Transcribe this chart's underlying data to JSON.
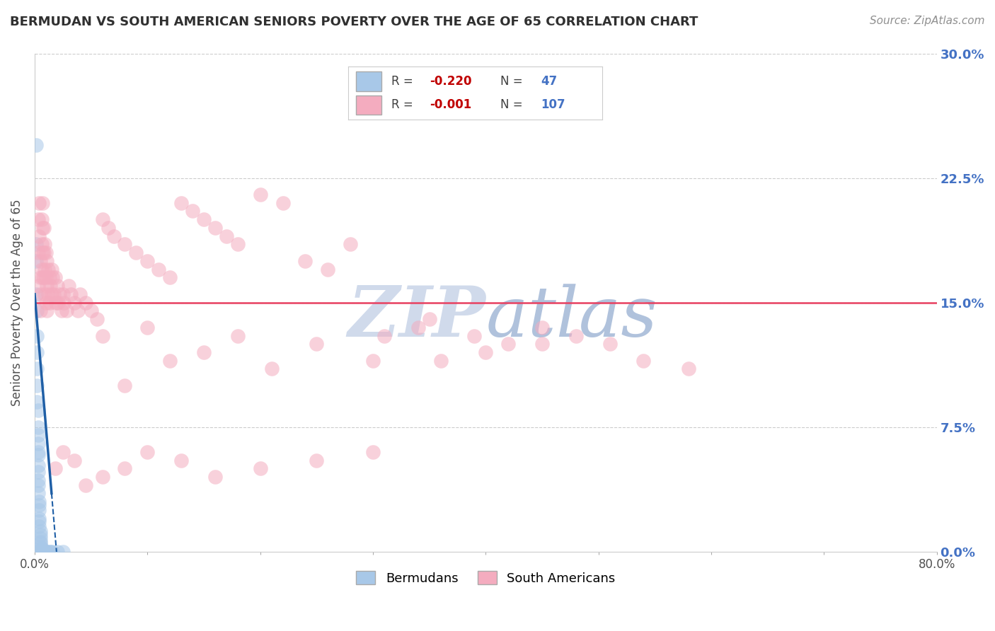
{
  "title": "BERMUDAN VS SOUTH AMERICAN SENIORS POVERTY OVER THE AGE OF 65 CORRELATION CHART",
  "source": "Source: ZipAtlas.com",
  "ylabel": "Seniors Poverty Over the Age of 65",
  "xlim": [
    0,
    0.8
  ],
  "ylim": [
    0,
    0.3
  ],
  "yticks": [
    0.0,
    0.075,
    0.15,
    0.225,
    0.3
  ],
  "ytick_labels": [
    "0.0%",
    "7.5%",
    "15.0%",
    "22.5%",
    "30.0%"
  ],
  "xticks": [
    0.0,
    0.1,
    0.2,
    0.3,
    0.4,
    0.5,
    0.6,
    0.7,
    0.8
  ],
  "xtick_labels": [
    "0.0%",
    "",
    "",
    "",
    "",
    "",
    "",
    "",
    "80.0%"
  ],
  "legend_R1": "-0.220",
  "legend_N1": "47",
  "legend_R2": "-0.001",
  "legend_N2": "107",
  "blue_color": "#A8C8E8",
  "pink_color": "#F4ACBF",
  "line_blue": "#1F5FA6",
  "hline_color": "#E84060",
  "grid_color": "#CCCCCC",
  "watermark_color": "#C8D4E8",
  "title_color": "#303030",
  "tick_color_right": "#4472C4",
  "tick_color_x": "#505050",
  "blue_x": [
    0.001,
    0.001,
    0.001,
    0.001,
    0.002,
    0.002,
    0.002,
    0.002,
    0.002,
    0.002,
    0.003,
    0.003,
    0.003,
    0.003,
    0.003,
    0.003,
    0.003,
    0.003,
    0.003,
    0.003,
    0.003,
    0.004,
    0.004,
    0.004,
    0.004,
    0.004,
    0.004,
    0.005,
    0.005,
    0.005,
    0.005,
    0.005,
    0.005,
    0.006,
    0.006,
    0.006,
    0.007,
    0.007,
    0.008,
    0.009,
    0.01,
    0.011,
    0.013,
    0.014,
    0.016,
    0.02,
    0.025
  ],
  "blue_y": [
    0.245,
    0.185,
    0.175,
    0.155,
    0.145,
    0.13,
    0.12,
    0.11,
    0.1,
    0.09,
    0.085,
    0.075,
    0.07,
    0.065,
    0.06,
    0.058,
    0.052,
    0.048,
    0.043,
    0.04,
    0.035,
    0.03,
    0.028,
    0.025,
    0.02,
    0.018,
    0.015,
    0.012,
    0.01,
    0.008,
    0.006,
    0.005,
    0.003,
    0.002,
    0.001,
    0.0,
    0.0,
    0.0,
    0.0,
    0.0,
    0.0,
    0.0,
    0.0,
    0.0,
    0.0,
    0.0,
    0.0
  ],
  "pink_x": [
    0.003,
    0.003,
    0.003,
    0.004,
    0.004,
    0.005,
    0.005,
    0.005,
    0.005,
    0.006,
    0.006,
    0.006,
    0.007,
    0.007,
    0.007,
    0.007,
    0.008,
    0.008,
    0.008,
    0.009,
    0.009,
    0.009,
    0.01,
    0.01,
    0.01,
    0.011,
    0.011,
    0.011,
    0.012,
    0.012,
    0.013,
    0.013,
    0.014,
    0.015,
    0.015,
    0.016,
    0.017,
    0.018,
    0.019,
    0.02,
    0.021,
    0.022,
    0.024,
    0.025,
    0.026,
    0.028,
    0.03,
    0.032,
    0.035,
    0.038,
    0.04,
    0.045,
    0.05,
    0.055,
    0.06,
    0.065,
    0.07,
    0.08,
    0.09,
    0.1,
    0.11,
    0.12,
    0.13,
    0.14,
    0.15,
    0.16,
    0.17,
    0.18,
    0.2,
    0.22,
    0.24,
    0.26,
    0.28,
    0.31,
    0.34,
    0.36,
    0.39,
    0.42,
    0.45,
    0.48,
    0.51,
    0.54,
    0.58,
    0.06,
    0.08,
    0.1,
    0.12,
    0.15,
    0.18,
    0.21,
    0.25,
    0.3,
    0.35,
    0.4,
    0.45,
    0.3,
    0.25,
    0.2,
    0.16,
    0.13,
    0.1,
    0.08,
    0.06,
    0.045,
    0.035,
    0.025,
    0.018
  ],
  "pink_y": [
    0.2,
    0.18,
    0.16,
    0.21,
    0.19,
    0.175,
    0.165,
    0.155,
    0.145,
    0.2,
    0.185,
    0.17,
    0.21,
    0.195,
    0.18,
    0.165,
    0.195,
    0.18,
    0.165,
    0.185,
    0.17,
    0.155,
    0.18,
    0.165,
    0.15,
    0.175,
    0.16,
    0.145,
    0.17,
    0.155,
    0.165,
    0.15,
    0.16,
    0.17,
    0.155,
    0.165,
    0.155,
    0.165,
    0.15,
    0.16,
    0.15,
    0.155,
    0.145,
    0.155,
    0.15,
    0.145,
    0.16,
    0.155,
    0.15,
    0.145,
    0.155,
    0.15,
    0.145,
    0.14,
    0.2,
    0.195,
    0.19,
    0.185,
    0.18,
    0.175,
    0.17,
    0.165,
    0.21,
    0.205,
    0.2,
    0.195,
    0.19,
    0.185,
    0.215,
    0.21,
    0.175,
    0.17,
    0.185,
    0.13,
    0.135,
    0.115,
    0.13,
    0.125,
    0.135,
    0.13,
    0.125,
    0.115,
    0.11,
    0.13,
    0.1,
    0.135,
    0.115,
    0.12,
    0.13,
    0.11,
    0.125,
    0.115,
    0.14,
    0.12,
    0.125,
    0.06,
    0.055,
    0.05,
    0.045,
    0.055,
    0.06,
    0.05,
    0.045,
    0.04,
    0.055,
    0.06,
    0.05
  ],
  "hline_y": 0.15,
  "blue_line_x0": 0.0,
  "blue_line_y0": 0.155,
  "blue_line_slope": -8.0,
  "blue_line_solid_end": 0.015,
  "blue_line_dashed_end": 0.025
}
